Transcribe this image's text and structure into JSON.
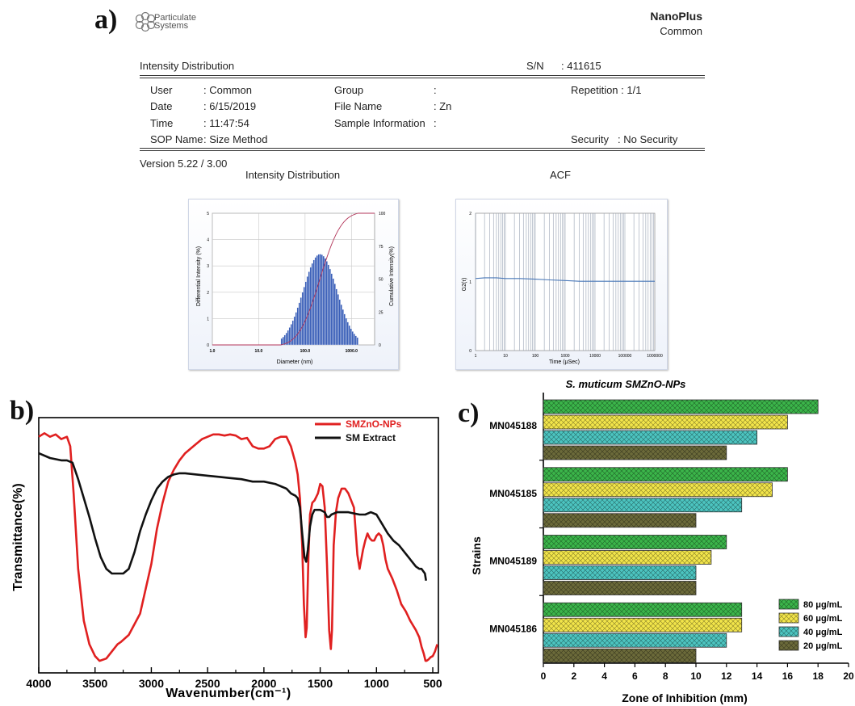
{
  "panel_labels": {
    "a": "a)",
    "b": "b)",
    "c": "c)"
  },
  "report": {
    "logo_line1": "Particulate",
    "logo_line2": "Systems",
    "instrument": "NanoPlus",
    "instrument_sub": "Common",
    "section_title": "Intensity Distribution",
    "sn_label": "S/N",
    "sn_value": ": 411615",
    "user_label": "User",
    "user_value": ": Common",
    "date_label": "Date",
    "date_value": ": 6/15/2019",
    "time_label": "Time",
    "time_value": ": 11:47:54",
    "sop_label": "SOP Name",
    "sop_value": ": Size Method",
    "group_label": "Group",
    "group_value": ":",
    "file_label": "File Name",
    "file_value": ": Zn",
    "sample_label": "Sample Information",
    "sample_value": ":",
    "repetition": "Repetition : 1/1",
    "security_label": "Security",
    "security_value": ": No Security",
    "version": "Version 5.22 / 3.00"
  },
  "chart_data": [
    {
      "type": "bar",
      "title": "Intensity Distribution",
      "xlabel": "Diameter (nm)",
      "ylabel": "Differential Intensity (%)",
      "y2label": "Cumulative Intensity(%)",
      "x_scale": "log",
      "xlim": [
        1,
        3162
      ],
      "ylim": [
        0,
        5
      ],
      "y2lim": [
        0,
        100
      ],
      "xticks": [
        "1.0",
        "10.0",
        "100.0",
        "1000.0"
      ],
      "yticks": [
        "0",
        "1",
        "2",
        "3",
        "4",
        "5"
      ],
      "y2ticks": [
        "0",
        "25",
        "50",
        "75",
        "100"
      ],
      "distribution": {
        "name": "Differential Intensity",
        "mode_nm": 210,
        "peak": 3.45,
        "log_sigma": 0.36,
        "range_nm": [
          30,
          1400
        ],
        "bins": 48
      },
      "cumulative": {
        "name": "Cumulative Intensity",
        "color": "#b3365a"
      },
      "bar_color": "#3a5fb8"
    },
    {
      "type": "line",
      "title": "ACF",
      "xlabel": "Time (μSec)",
      "ylabel": "G2(τ)",
      "x_scale": "log",
      "xlim": [
        1,
        1000000
      ],
      "ylim": [
        0,
        2
      ],
      "xticks": [
        "1",
        "10",
        "100",
        "1000",
        "10000",
        "100000",
        "1000000"
      ],
      "yticks": [
        "0",
        "1",
        "2"
      ],
      "series": [
        {
          "x": [
            1,
            2,
            5,
            10,
            30,
            100,
            300,
            1000,
            3000,
            10000,
            100000,
            1000000
          ],
          "y": [
            1.05,
            1.06,
            1.06,
            1.05,
            1.05,
            1.04,
            1.03,
            1.02,
            1.01,
            1.01,
            1.01,
            1.01
          ],
          "color": "#4a78b8"
        }
      ]
    },
    {
      "type": "line",
      "xlabel": "Wavenumber(cm⁻¹)",
      "ylabel": "Transmittance(%)",
      "xlim": [
        4000,
        450
      ],
      "ylim": [
        0,
        100
      ],
      "xticks": [
        4000,
        3500,
        3000,
        2500,
        2000,
        1500,
        1000,
        500
      ],
      "series": [
        {
          "name": "SMZnO-NPs",
          "color": "#e02020",
          "points": [
            [
              4000,
              96
            ],
            [
              3950,
              97.5
            ],
            [
              3900,
              96
            ],
            [
              3850,
              97
            ],
            [
              3800,
              95
            ],
            [
              3750,
              96
            ],
            [
              3720,
              92
            ],
            [
              3690,
              72
            ],
            [
              3650,
              40
            ],
            [
              3600,
              18
            ],
            [
              3550,
              8
            ],
            [
              3500,
              3
            ],
            [
              3460,
              1
            ],
            [
              3400,
              2
            ],
            [
              3350,
              5
            ],
            [
              3300,
              8
            ],
            [
              3270,
              9
            ],
            [
              3200,
              12
            ],
            [
              3100,
              21
            ],
            [
              3000,
              42
            ],
            [
              2950,
              57
            ],
            [
              2900,
              68
            ],
            [
              2850,
              77
            ],
            [
              2800,
              82
            ],
            [
              2750,
              86
            ],
            [
              2700,
              89
            ],
            [
              2650,
              91
            ],
            [
              2600,
              93
            ],
            [
              2550,
              95
            ],
            [
              2500,
              96
            ],
            [
              2450,
              97
            ],
            [
              2400,
              97
            ],
            [
              2350,
              96.5
            ],
            [
              2300,
              97
            ],
            [
              2250,
              96.5
            ],
            [
              2200,
              95
            ],
            [
              2150,
              95.5
            ],
            [
              2100,
              92
            ],
            [
              2050,
              91
            ],
            [
              2000,
              91
            ],
            [
              1950,
              92
            ],
            [
              1900,
              95
            ],
            [
              1850,
              96
            ],
            [
              1800,
              96
            ],
            [
              1760,
              92
            ],
            [
              1720,
              85
            ],
            [
              1700,
              80
            ],
            [
              1680,
              70
            ],
            [
              1660,
              50
            ],
            [
              1645,
              25
            ],
            [
              1630,
              11
            ],
            [
              1620,
              15
            ],
            [
              1605,
              45
            ],
            [
              1590,
              63
            ],
            [
              1570,
              68
            ],
            [
              1550,
              69
            ],
            [
              1520,
              72
            ],
            [
              1500,
              76
            ],
            [
              1480,
              75
            ],
            [
              1460,
              66
            ],
            [
              1440,
              42
            ],
            [
              1420,
              14
            ],
            [
              1405,
              6
            ],
            [
              1395,
              14
            ],
            [
              1380,
              50
            ],
            [
              1360,
              64
            ],
            [
              1340,
              70
            ],
            [
              1310,
              74
            ],
            [
              1280,
              74
            ],
            [
              1250,
              72
            ],
            [
              1200,
              66
            ],
            [
              1170,
              46
            ],
            [
              1150,
              40
            ],
            [
              1120,
              48
            ],
            [
              1100,
              52
            ],
            [
              1080,
              55
            ],
            [
              1060,
              53
            ],
            [
              1040,
              52
            ],
            [
              1020,
              52
            ],
            [
              1000,
              54
            ],
            [
              980,
              55
            ],
            [
              960,
              54
            ],
            [
              940,
              50
            ],
            [
              920,
              44
            ],
            [
              900,
              40
            ],
            [
              860,
              36
            ],
            [
              820,
              31
            ],
            [
              780,
              25
            ],
            [
              740,
              22
            ],
            [
              700,
              18
            ],
            [
              650,
              14
            ],
            [
              620,
              11
            ],
            [
              600,
              7
            ],
            [
              580,
              4
            ],
            [
              565,
              1
            ],
            [
              555,
              1
            ],
            [
              540,
              1.5
            ],
            [
              520,
              2.5
            ],
            [
              500,
              3
            ],
            [
              480,
              5
            ],
            [
              460,
              8
            ]
          ]
        },
        {
          "name": "SM Extract",
          "color": "#111111",
          "points": [
            [
              4000,
              89
            ],
            [
              3900,
              87
            ],
            [
              3800,
              86
            ],
            [
              3750,
              86
            ],
            [
              3700,
              85
            ],
            [
              3650,
              78
            ],
            [
              3600,
              70
            ],
            [
              3550,
              62
            ],
            [
              3500,
              53
            ],
            [
              3450,
              45
            ],
            [
              3400,
              40
            ],
            [
              3350,
              38
            ],
            [
              3300,
              38
            ],
            [
              3250,
              38
            ],
            [
              3200,
              40
            ],
            [
              3150,
              47
            ],
            [
              3100,
              56
            ],
            [
              3050,
              63
            ],
            [
              3000,
              69
            ],
            [
              2950,
              74
            ],
            [
              2900,
              77
            ],
            [
              2850,
              79
            ],
            [
              2800,
              80
            ],
            [
              2750,
              80.5
            ],
            [
              2700,
              80.5
            ],
            [
              2600,
              80
            ],
            [
              2500,
              79.5
            ],
            [
              2400,
              79
            ],
            [
              2300,
              78.5
            ],
            [
              2200,
              78
            ],
            [
              2100,
              77
            ],
            [
              2000,
              77
            ],
            [
              1900,
              76
            ],
            [
              1850,
              75
            ],
            [
              1800,
              74
            ],
            [
              1760,
              72
            ],
            [
              1720,
              71
            ],
            [
              1700,
              70
            ],
            [
              1680,
              66
            ],
            [
              1660,
              55
            ],
            [
              1640,
              45
            ],
            [
              1625,
              43
            ],
            [
              1610,
              48
            ],
            [
              1590,
              58
            ],
            [
              1570,
              63
            ],
            [
              1550,
              65
            ],
            [
              1520,
              65
            ],
            [
              1500,
              65
            ],
            [
              1460,
              64
            ],
            [
              1440,
              62
            ],
            [
              1420,
              62
            ],
            [
              1400,
              63
            ],
            [
              1350,
              64
            ],
            [
              1300,
              64
            ],
            [
              1250,
              64
            ],
            [
              1200,
              63.5
            ],
            [
              1150,
              63
            ],
            [
              1100,
              63
            ],
            [
              1050,
              64
            ],
            [
              1000,
              63
            ],
            [
              950,
              59
            ],
            [
              900,
              55
            ],
            [
              850,
              52
            ],
            [
              800,
              50
            ],
            [
              750,
              47
            ],
            [
              700,
              44
            ],
            [
              650,
              41
            ],
            [
              620,
              40
            ],
            [
              600,
              40
            ],
            [
              570,
              38
            ],
            [
              560,
              35
            ]
          ]
        }
      ]
    },
    {
      "type": "bar",
      "orientation": "horizontal",
      "title": "S. muticum SMZnO-NPs",
      "xlabel": "Zone of Inhibition (mm)",
      "ylabel": "Strains",
      "xlim": [
        0,
        20
      ],
      "xticks": [
        0,
        2,
        4,
        6,
        8,
        10,
        12,
        14,
        16,
        18,
        20
      ],
      "categories": [
        "MN045188",
        "MN045185",
        "MN045189",
        "MN045186"
      ],
      "series": [
        {
          "name": "80 μg/mL",
          "values": [
            18,
            16,
            12,
            13
          ],
          "color": "#3bb54a"
        },
        {
          "name": "60 μg/mL",
          "values": [
            16,
            15,
            11,
            13
          ],
          "color": "#f2e54a"
        },
        {
          "name": "40 μg/mL",
          "values": [
            14,
            13,
            10,
            12
          ],
          "color": "#4cc4c0"
        },
        {
          "name": "20 μg/mL",
          "values": [
            12,
            10,
            10,
            10
          ],
          "color": "#6b6a3a"
        }
      ],
      "legend_position": "bottom-right"
    }
  ]
}
